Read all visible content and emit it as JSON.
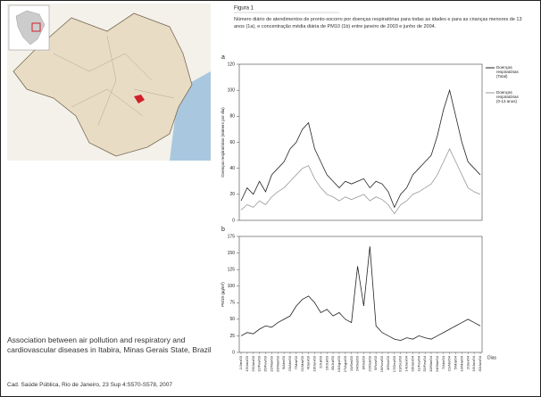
{
  "figure": {
    "label": "Figura 1",
    "caption": "Número diário de atendimentos de pronto-socorro por doenças respiratórias para todas as idades e para as crianças menores de 13 anos (1a), e concentração média diária de PM10 (1b) entre janeiro de 2003 e junho de 2004."
  },
  "paper": {
    "title": "Association between air pollution and respiratory and cardiovascular diseases in Itabira, Minas Gerais State, Brazil",
    "citation": "Cad. Saúde Pública, Rio de Janeiro, 23 Sup 4:S570-S578, 2007"
  },
  "chart_data": [
    {
      "type": "line",
      "panel": "a",
      "ylabel": "Doenças respiratórias (número por dia)",
      "ylim": [
        0,
        120
      ],
      "yticks": [
        0,
        20,
        40,
        60,
        80,
        100,
        120
      ],
      "series": [
        {
          "name": "Doenças respiratórias (Total)",
          "color": "#222222",
          "values": [
            15,
            25,
            20,
            30,
            22,
            35,
            40,
            45,
            55,
            60,
            70,
            75,
            55,
            45,
            35,
            30,
            25,
            30,
            28,
            30,
            32,
            25,
            30,
            28,
            22,
            10,
            20,
            25,
            35,
            40,
            45,
            50,
            65,
            85,
            100,
            80,
            60,
            45,
            40,
            35
          ]
        },
        {
          "name": "Doenças respiratórias (0-13 anos)",
          "color": "#999999",
          "values": [
            8,
            12,
            10,
            15,
            12,
            18,
            22,
            25,
            30,
            35,
            40,
            42,
            32,
            25,
            20,
            18,
            15,
            18,
            16,
            18,
            20,
            15,
            18,
            16,
            12,
            5,
            12,
            15,
            20,
            22,
            25,
            28,
            35,
            45,
            55,
            45,
            35,
            25,
            22,
            20
          ]
        }
      ]
    },
    {
      "type": "line",
      "panel": "b",
      "ylabel": "PM10 (µg/m³)",
      "xlabel": "Dias",
      "ylim": [
        0,
        175
      ],
      "yticks": [
        0,
        25,
        50,
        75,
        100,
        125,
        150,
        175
      ],
      "x": [
        "1/Jan/03",
        "15/Jan/03",
        "29/Jan/03",
        "12/Fev/03",
        "26/Fev/03",
        "12/Mar/03",
        "26/Mar/03",
        "9/Abr/03",
        "23/Abr/03",
        "7/Mai/03",
        "21/Mai/03",
        "4/Jun/03",
        "18/Jun/03",
        "2/Jul/03",
        "16/Jul/03",
        "30/Jul/03",
        "13/Ago/03",
        "27/Ago/03",
        "10/Set/03",
        "24/Set/03",
        "8/Out/03",
        "22/Out/03",
        "5/Nov/03",
        "19/Nov/03",
        "3/Dez/03",
        "17/Dez/03",
        "31/Dez/03",
        "14/Jan/04",
        "28/Jan/04",
        "11/Fev/04",
        "25/Fev/04",
        "10/Mar/04",
        "24/Mar/04",
        "7/Abr/04",
        "21/Abr/04",
        "5/Mai/04",
        "19/Mai/04",
        "2/Jun/04",
        "16/Jun/04",
        "30/Jun/04"
      ],
      "series": [
        {
          "name": "PM10",
          "color": "#222222",
          "values": [
            25,
            30,
            28,
            35,
            40,
            38,
            45,
            50,
            55,
            70,
            80,
            85,
            75,
            60,
            65,
            55,
            60,
            50,
            45,
            130,
            70,
            160,
            40,
            30,
            25,
            20,
            18,
            22,
            20,
            25,
            22,
            20,
            25,
            30,
            35,
            40,
            45,
            50,
            45,
            40
          ]
        }
      ]
    }
  ]
}
